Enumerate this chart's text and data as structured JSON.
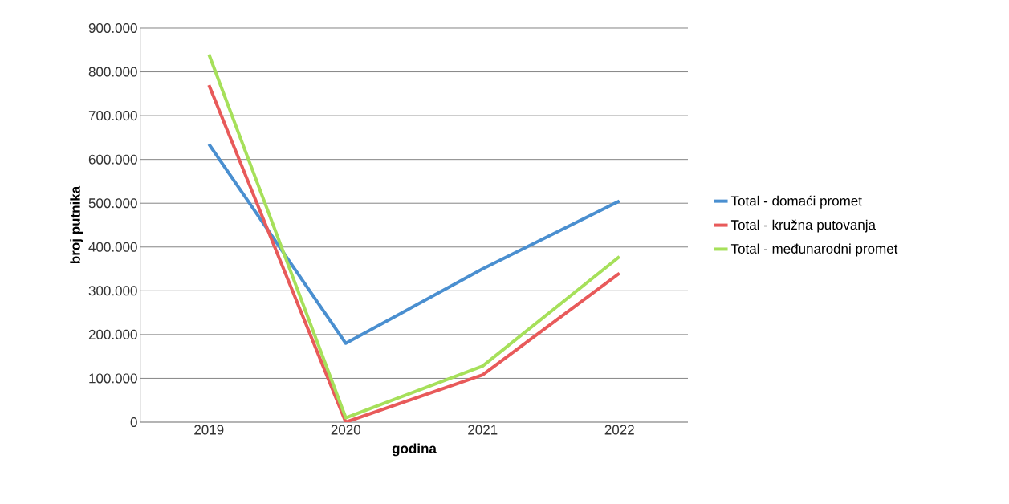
{
  "chart_data": {
    "type": "line",
    "xlabel": "godina",
    "ylabel": "broj putnika",
    "categories": [
      "2019",
      "2020",
      "2021",
      "2022"
    ],
    "series": [
      {
        "name": "Total - domaći promet",
        "color": "#4a8fd0",
        "values": [
          635000,
          180000,
          350000,
          505000
        ]
      },
      {
        "name": "Total - kružna putovanja",
        "color": "#e85a5a",
        "values": [
          770000,
          0,
          108000,
          340000
        ]
      },
      {
        "name": "Total - međunarodni promet",
        "color": "#a6e05a",
        "values": [
          840000,
          10000,
          128000,
          378000
        ]
      }
    ],
    "ylim": [
      0,
      900000
    ],
    "yticks": [
      {
        "value": 0,
        "label": "0"
      },
      {
        "value": 100000,
        "label": "100.000"
      },
      {
        "value": 200000,
        "label": "200.000"
      },
      {
        "value": 300000,
        "label": "300.000"
      },
      {
        "value": 400000,
        "label": "400.000"
      },
      {
        "value": 500000,
        "label": "500.000"
      },
      {
        "value": 600000,
        "label": "600.000"
      },
      {
        "value": 700000,
        "label": "700.000"
      },
      {
        "value": 800000,
        "label": "800.000"
      },
      {
        "value": 900000,
        "label": "900.000"
      }
    ],
    "grid": "y",
    "legend": "right",
    "marker": "none",
    "line_style": "solid"
  }
}
